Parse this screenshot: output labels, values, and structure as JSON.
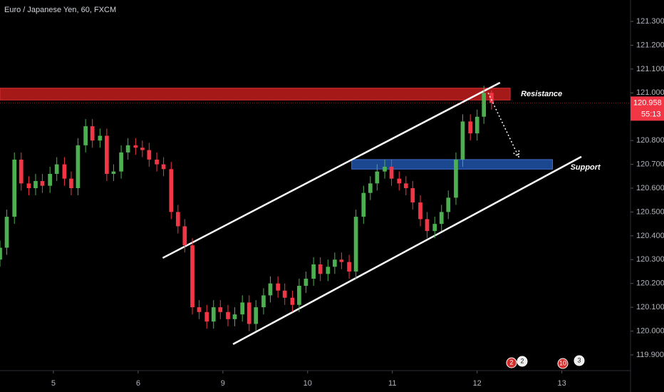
{
  "chart_data": {
    "type": "candlestick",
    "title": "Euro / Japanese Yen, 60, FXCM",
    "up_color": "#4caf50",
    "down_color": "#f23645",
    "xlim": [
      -0.63,
      6.81
    ],
    "xticks": [
      {
        "value": 0,
        "label": "5"
      },
      {
        "value": 1,
        "label": "6"
      },
      {
        "value": 2,
        "label": "9"
      },
      {
        "value": 3,
        "label": "10"
      },
      {
        "value": 4,
        "label": "11"
      },
      {
        "value": 5,
        "label": "12"
      },
      {
        "value": 6,
        "label": "13"
      }
    ],
    "ylim": [
      119.834,
      121.39
    ],
    "yticks": [
      {
        "value": 119.9,
        "label": "119.900"
      },
      {
        "value": 120.0,
        "label": "120.000"
      },
      {
        "value": 120.1,
        "label": "120.100"
      },
      {
        "value": 120.2,
        "label": "120.200"
      },
      {
        "value": 120.3,
        "label": "120.300"
      },
      {
        "value": 120.4,
        "label": "120.400"
      },
      {
        "value": 120.5,
        "label": "120.500"
      },
      {
        "value": 120.6,
        "label": "120.600"
      },
      {
        "value": 120.7,
        "label": "120.700"
      },
      {
        "value": 120.8,
        "label": "120.800"
      },
      {
        "value": 121.0,
        "label": "121.000"
      },
      {
        "value": 121.1,
        "label": "121.100"
      },
      {
        "value": 121.2,
        "label": "121.200"
      },
      {
        "value": 121.3,
        "label": "121.300"
      }
    ],
    "x": [
      -0.63,
      -0.55,
      -0.46,
      -0.38,
      -0.29,
      -0.21,
      -0.13,
      -0.04,
      0.04,
      0.13,
      0.21,
      0.29,
      0.38,
      0.46,
      0.55,
      0.63,
      0.71,
      0.8,
      0.88,
      0.97,
      1.05,
      1.13,
      1.22,
      1.3,
      1.39,
      1.47,
      1.55,
      1.64,
      1.72,
      1.81,
      1.89,
      1.97,
      2.06,
      2.14,
      2.23,
      2.31,
      2.39,
      2.48,
      2.56,
      2.65,
      2.73,
      2.82,
      2.9,
      2.98,
      3.07,
      3.15,
      3.24,
      3.32,
      3.4,
      3.49,
      3.57,
      3.66,
      3.74,
      3.82,
      3.91,
      3.99,
      4.08,
      4.16,
      4.24,
      4.33,
      4.41,
      4.5,
      4.58,
      4.66,
      4.75,
      4.83,
      4.92,
      5.0,
      5.08,
      5.17
    ],
    "open": [
      120.3,
      120.35,
      120.48,
      120.72,
      120.62,
      120.6,
      120.63,
      120.61,
      120.66,
      120.7,
      120.64,
      120.6,
      120.78,
      120.86,
      120.8,
      120.82,
      120.66,
      120.67,
      120.75,
      120.78,
      120.77,
      120.76,
      120.72,
      120.7,
      120.68,
      120.5,
      120.44,
      120.36,
      120.1,
      120.08,
      120.04,
      120.1,
      120.08,
      120.05,
      120.07,
      120.12,
      120.03,
      120.1,
      120.15,
      120.2,
      120.17,
      120.14,
      120.11,
      120.19,
      120.22,
      120.28,
      120.24,
      120.27,
      120.3,
      120.29,
      120.25,
      120.48,
      120.58,
      120.62,
      120.67,
      120.69,
      120.64,
      120.62,
      120.6,
      120.54,
      120.47,
      120.42,
      120.45,
      120.5,
      120.56,
      120.72,
      120.88,
      120.83,
      120.9,
      121.0
    ],
    "high": [
      120.38,
      120.51,
      120.75,
      120.75,
      120.65,
      120.66,
      120.66,
      120.69,
      120.73,
      120.73,
      120.67,
      120.81,
      120.89,
      120.89,
      120.85,
      120.85,
      120.7,
      120.78,
      120.81,
      120.81,
      120.8,
      120.79,
      120.75,
      120.73,
      120.71,
      120.53,
      120.47,
      120.39,
      120.13,
      120.11,
      120.13,
      120.13,
      120.11,
      120.1,
      120.15,
      120.15,
      120.13,
      120.18,
      120.23,
      120.23,
      120.2,
      120.17,
      120.22,
      120.25,
      120.31,
      120.31,
      120.3,
      120.33,
      120.33,
      120.32,
      120.51,
      120.61,
      120.65,
      120.7,
      120.72,
      120.72,
      120.67,
      120.65,
      120.63,
      120.57,
      120.5,
      120.48,
      120.53,
      120.59,
      120.75,
      120.91,
      120.91,
      120.93,
      121.03,
      121.01
    ],
    "low": [
      120.27,
      120.32,
      120.45,
      120.59,
      120.57,
      120.57,
      120.58,
      120.58,
      120.63,
      120.61,
      120.57,
      120.57,
      120.75,
      120.77,
      120.77,
      120.63,
      120.63,
      120.64,
      120.72,
      120.74,
      120.73,
      120.69,
      120.67,
      120.65,
      120.47,
      120.41,
      120.33,
      120.07,
      120.05,
      120.01,
      120.01,
      120.05,
      120.02,
      120.02,
      120.04,
      120.0,
      120.0,
      120.07,
      120.12,
      120.14,
      120.11,
      120.08,
      120.08,
      120.16,
      120.19,
      120.21,
      120.21,
      120.24,
      120.26,
      120.22,
      120.22,
      120.45,
      120.55,
      120.59,
      120.64,
      120.61,
      120.59,
      120.57,
      120.51,
      120.44,
      120.39,
      120.39,
      120.42,
      120.47,
      120.53,
      120.69,
      120.8,
      120.8,
      120.87,
      120.93
    ],
    "close": [
      120.35,
      120.48,
      120.72,
      120.62,
      120.6,
      120.63,
      120.61,
      120.66,
      120.7,
      120.64,
      120.6,
      120.78,
      120.86,
      120.8,
      120.82,
      120.66,
      120.67,
      120.75,
      120.78,
      120.77,
      120.76,
      120.72,
      120.7,
      120.68,
      120.5,
      120.44,
      120.36,
      120.1,
      120.08,
      120.04,
      120.1,
      120.08,
      120.05,
      120.07,
      120.12,
      120.03,
      120.1,
      120.15,
      120.2,
      120.17,
      120.14,
      120.11,
      120.19,
      120.22,
      120.28,
      120.24,
      120.27,
      120.3,
      120.29,
      120.25,
      120.48,
      120.58,
      120.62,
      120.67,
      120.69,
      120.64,
      120.62,
      120.6,
      120.54,
      120.47,
      120.42,
      120.45,
      120.5,
      120.56,
      120.72,
      120.88,
      120.83,
      120.9,
      121.0,
      120.958
    ],
    "zones": [
      {
        "name": "Resistance",
        "color": "#b71c1c",
        "x": [
          -0.63,
          5.39
        ],
        "y": [
          120.97,
          121.02
        ]
      },
      {
        "name": "Support",
        "color": "#1e4fa0",
        "x": [
          3.52,
          5.89
        ],
        "y": [
          120.68,
          120.72
        ]
      }
    ],
    "channels": [
      {
        "x": [
          1.29,
          5.27
        ],
        "y": [
          120.307,
          121.043
        ]
      },
      {
        "x": [
          2.12,
          6.23
        ],
        "y": [
          119.945,
          120.732
        ]
      }
    ],
    "arrow": {
      "x": [
        5.13,
        5.49
      ],
      "y": [
        121.0,
        120.732
      ]
    },
    "last_price": {
      "value": 120.958,
      "label": "120.958"
    },
    "countdown": "55:13",
    "badges": [
      "2",
      "2",
      "10",
      "3"
    ]
  }
}
